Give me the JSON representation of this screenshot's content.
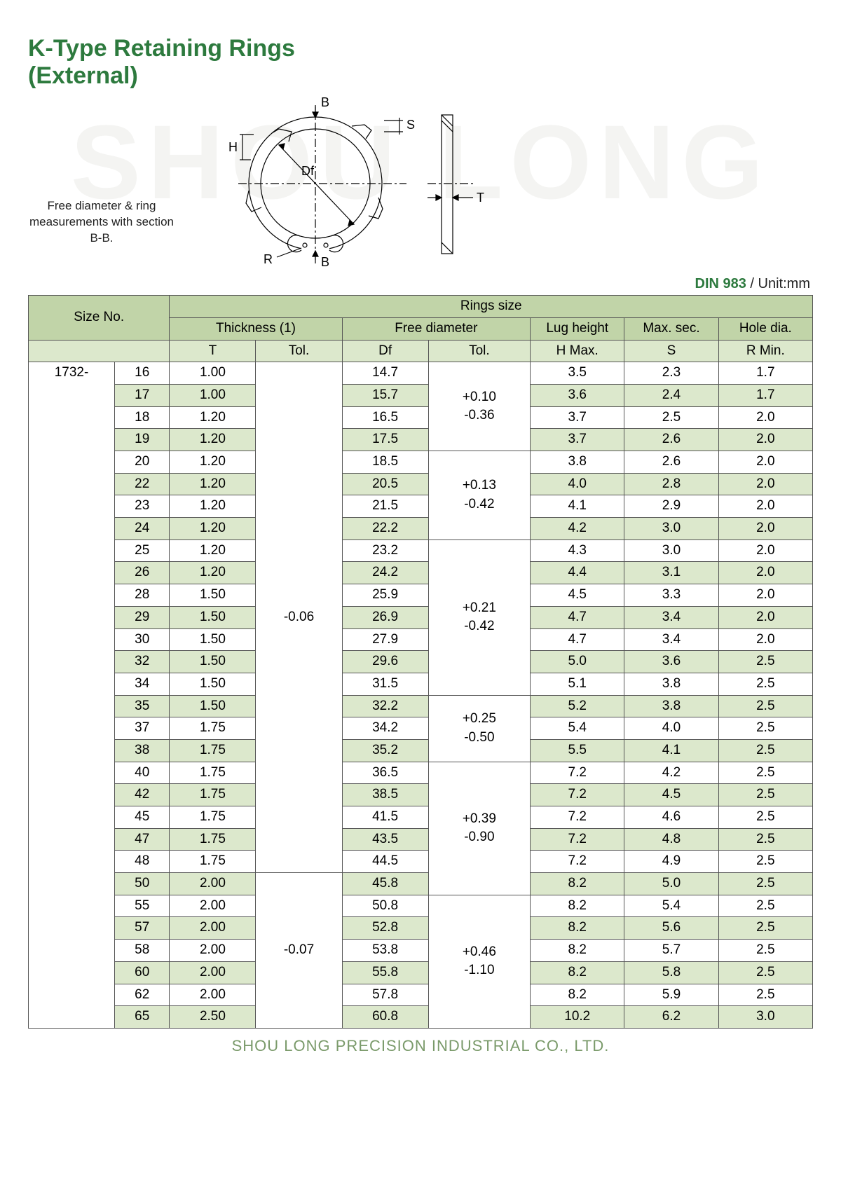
{
  "title_line1": "K-Type Retaining Rings",
  "title_line2": "(External)",
  "watermark_text": "SHOU LONG",
  "caption": "Free diameter & ring measurements with section B-B.",
  "diagram_labels": {
    "B": "B",
    "S": "S",
    "H": "H",
    "Df": "Df",
    "T": "T",
    "R": "R"
  },
  "standard": "DIN 983",
  "unit_label": " / Unit:mm",
  "headers": {
    "size_no": "Size No.",
    "rings_size": "Rings size",
    "thickness": "Thickness (1)",
    "free_dia": "Free diameter",
    "lug_h": "Lug height",
    "max_sec": "Max. sec.",
    "hole_dia": "Hole dia.",
    "T": "T",
    "Tol": "Tol.",
    "Df": "Df",
    "Hmax": "H Max.",
    "S": "S",
    "Rmin": "R Min."
  },
  "prefix": "1732-",
  "rows": [
    {
      "n": "16",
      "t": "1.00",
      "df": "14.7",
      "h": "3.5",
      "s": "2.3",
      "r": "1.7",
      "stripe": false
    },
    {
      "n": "17",
      "t": "1.00",
      "df": "15.7",
      "h": "3.6",
      "s": "2.4",
      "r": "1.7",
      "stripe": true
    },
    {
      "n": "18",
      "t": "1.20",
      "df": "16.5",
      "h": "3.7",
      "s": "2.5",
      "r": "2.0",
      "stripe": false
    },
    {
      "n": "19",
      "t": "1.20",
      "df": "17.5",
      "h": "3.7",
      "s": "2.6",
      "r": "2.0",
      "stripe": true
    },
    {
      "n": "20",
      "t": "1.20",
      "df": "18.5",
      "h": "3.8",
      "s": "2.6",
      "r": "2.0",
      "stripe": false
    },
    {
      "n": "22",
      "t": "1.20",
      "df": "20.5",
      "h": "4.0",
      "s": "2.8",
      "r": "2.0",
      "stripe": true
    },
    {
      "n": "23",
      "t": "1.20",
      "df": "21.5",
      "h": "4.1",
      "s": "2.9",
      "r": "2.0",
      "stripe": false
    },
    {
      "n": "24",
      "t": "1.20",
      "df": "22.2",
      "h": "4.2",
      "s": "3.0",
      "r": "2.0",
      "stripe": true
    },
    {
      "n": "25",
      "t": "1.20",
      "df": "23.2",
      "h": "4.3",
      "s": "3.0",
      "r": "2.0",
      "stripe": false
    },
    {
      "n": "26",
      "t": "1.20",
      "df": "24.2",
      "h": "4.4",
      "s": "3.1",
      "r": "2.0",
      "stripe": true
    },
    {
      "n": "28",
      "t": "1.50",
      "df": "25.9",
      "h": "4.5",
      "s": "3.3",
      "r": "2.0",
      "stripe": false
    },
    {
      "n": "29",
      "t": "1.50",
      "df": "26.9",
      "h": "4.7",
      "s": "3.4",
      "r": "2.0",
      "stripe": true
    },
    {
      "n": "30",
      "t": "1.50",
      "df": "27.9",
      "h": "4.7",
      "s": "3.4",
      "r": "2.0",
      "stripe": false
    },
    {
      "n": "32",
      "t": "1.50",
      "df": "29.6",
      "h": "5.0",
      "s": "3.6",
      "r": "2.5",
      "stripe": true
    },
    {
      "n": "34",
      "t": "1.50",
      "df": "31.5",
      "h": "5.1",
      "s": "3.8",
      "r": "2.5",
      "stripe": false
    },
    {
      "n": "35",
      "t": "1.50",
      "df": "32.2",
      "h": "5.2",
      "s": "3.8",
      "r": "2.5",
      "stripe": true
    },
    {
      "n": "37",
      "t": "1.75",
      "df": "34.2",
      "h": "5.4",
      "s": "4.0",
      "r": "2.5",
      "stripe": false
    },
    {
      "n": "38",
      "t": "1.75",
      "df": "35.2",
      "h": "5.5",
      "s": "4.1",
      "r": "2.5",
      "stripe": true
    },
    {
      "n": "40",
      "t": "1.75",
      "df": "36.5",
      "h": "7.2",
      "s": "4.2",
      "r": "2.5",
      "stripe": false
    },
    {
      "n": "42",
      "t": "1.75",
      "df": "38.5",
      "h": "7.2",
      "s": "4.5",
      "r": "2.5",
      "stripe": true
    },
    {
      "n": "45",
      "t": "1.75",
      "df": "41.5",
      "h": "7.2",
      "s": "4.6",
      "r": "2.5",
      "stripe": false
    },
    {
      "n": "47",
      "t": "1.75",
      "df": "43.5",
      "h": "7.2",
      "s": "4.8",
      "r": "2.5",
      "stripe": true
    },
    {
      "n": "48",
      "t": "1.75",
      "df": "44.5",
      "h": "7.2",
      "s": "4.9",
      "r": "2.5",
      "stripe": false
    },
    {
      "n": "50",
      "t": "2.00",
      "df": "45.8",
      "h": "8.2",
      "s": "5.0",
      "r": "2.5",
      "stripe": true
    },
    {
      "n": "55",
      "t": "2.00",
      "df": "50.8",
      "h": "8.2",
      "s": "5.4",
      "r": "2.5",
      "stripe": false
    },
    {
      "n": "57",
      "t": "2.00",
      "df": "52.8",
      "h": "8.2",
      "s": "5.6",
      "r": "2.5",
      "stripe": true
    },
    {
      "n": "58",
      "t": "2.00",
      "df": "53.8",
      "h": "8.2",
      "s": "5.7",
      "r": "2.5",
      "stripe": false
    },
    {
      "n": "60",
      "t": "2.00",
      "df": "55.8",
      "h": "8.2",
      "s": "5.8",
      "r": "2.5",
      "stripe": true
    },
    {
      "n": "62",
      "t": "2.00",
      "df": "57.8",
      "h": "8.2",
      "s": "5.9",
      "r": "2.5",
      "stripe": false
    },
    {
      "n": "65",
      "t": "2.50",
      "df": "60.8",
      "h": "10.2",
      "s": "6.2",
      "r": "3.0",
      "stripe": true
    }
  ],
  "t_tol_groups": [
    {
      "span": 23,
      "val": "-0.06"
    },
    {
      "span": 7,
      "val": "-0.07"
    }
  ],
  "df_tol_groups": [
    {
      "span": 4,
      "val": "+0.10\n-0.36"
    },
    {
      "span": 4,
      "val": "+0.13\n-0.42"
    },
    {
      "span": 7,
      "val": "+0.21\n-0.42"
    },
    {
      "span": 3,
      "val": "+0.25\n-0.50"
    },
    {
      "span": 6,
      "val": "+0.39\n-0.90"
    },
    {
      "span": 6,
      "val": "+0.46\n-1.10"
    }
  ],
  "footer": "SHOU LONG PRECISION INDUSTRIAL CO., LTD."
}
